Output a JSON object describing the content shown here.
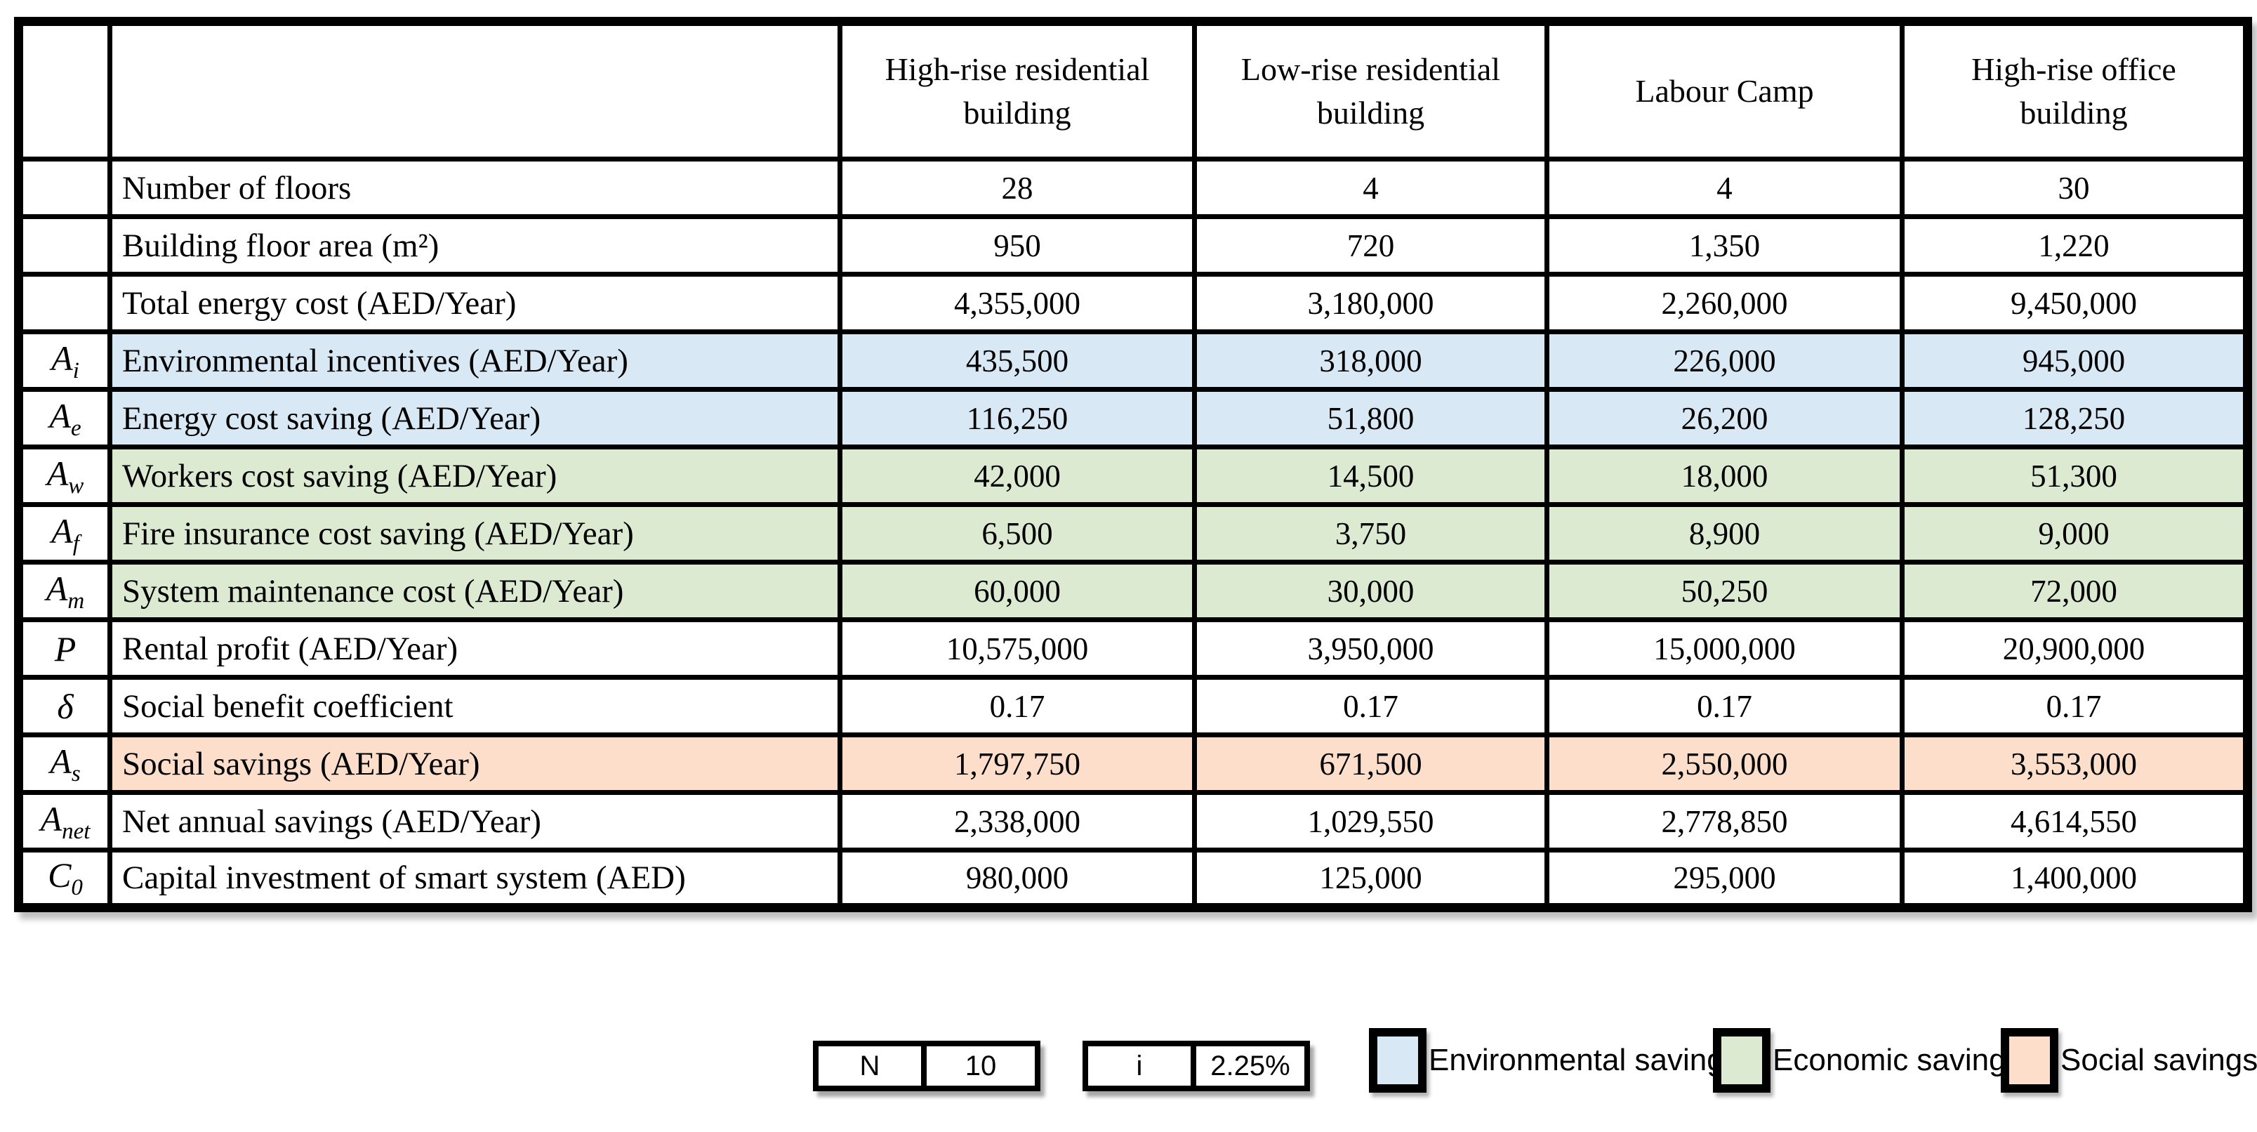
{
  "table": {
    "columns": [
      "High-rise residential building",
      "Low-rise residential building",
      "Labour Camp",
      "High-rise office building"
    ],
    "rows": [
      {
        "symbol": "",
        "sub": "",
        "band": "none",
        "label": "Number of floors",
        "values": [
          "28",
          "4",
          "4",
          "30"
        ]
      },
      {
        "symbol": "",
        "sub": "",
        "band": "none",
        "label": "Building floor area (m²)",
        "values": [
          "950",
          "720",
          "1,350",
          "1,220"
        ]
      },
      {
        "symbol": "",
        "sub": "",
        "band": "none",
        "label": "Total energy cost (AED/Year)",
        "values": [
          "4,355,000",
          "3,180,000",
          "2,260,000",
          "9,450,000"
        ]
      },
      {
        "symbol": "A",
        "sub": "i",
        "band": "environmental",
        "label": "Environmental incentives (AED/Year)",
        "values": [
          "435,500",
          "318,000",
          "226,000",
          "945,000"
        ]
      },
      {
        "symbol": "A",
        "sub": "e",
        "band": "environmental",
        "label": "Energy cost saving (AED/Year)",
        "values": [
          "116,250",
          "51,800",
          "26,200",
          "128,250"
        ]
      },
      {
        "symbol": "A",
        "sub": "w",
        "band": "economic",
        "label": "Workers cost saving (AED/Year)",
        "values": [
          "42,000",
          "14,500",
          "18,000",
          "51,300"
        ]
      },
      {
        "symbol": "A",
        "sub": "f",
        "band": "economic",
        "label": "Fire insurance cost saving (AED/Year)",
        "values": [
          "6,500",
          "3,750",
          "8,900",
          "9,000"
        ]
      },
      {
        "symbol": "A",
        "sub": "m",
        "band": "economic",
        "label": "System maintenance cost (AED/Year)",
        "values": [
          "60,000",
          "30,000",
          "50,250",
          "72,000"
        ]
      },
      {
        "symbol": "P",
        "sub": "",
        "band": "none",
        "label": "Rental profit (AED/Year)",
        "values": [
          "10,575,000",
          "3,950,000",
          "15,000,000",
          "20,900,000"
        ]
      },
      {
        "symbol": "δ",
        "sub": "",
        "band": "none",
        "label": "Social benefit coefficient",
        "values": [
          "0.17",
          "0.17",
          "0.17",
          "0.17"
        ]
      },
      {
        "symbol": "A",
        "sub": "s",
        "band": "social",
        "label": "Social savings (AED/Year)",
        "values": [
          "1,797,750",
          "671,500",
          "2,550,000",
          "3,553,000"
        ]
      },
      {
        "symbol": "A",
        "sub": "net",
        "band": "none",
        "label": "Net annual savings (AED/Year)",
        "values": [
          "2,338,000",
          "1,029,550",
          "2,778,850",
          "4,614,550"
        ]
      },
      {
        "symbol": "C",
        "sub": "0",
        "band": "none",
        "label": "Capital investment of smart system (AED)",
        "values": [
          "980,000",
          "125,000",
          "295,000",
          "1,400,000"
        ]
      }
    ]
  },
  "params": [
    {
      "label": "N",
      "value": "10"
    },
    {
      "label": "i",
      "value": "2.25%"
    }
  ],
  "legend": [
    {
      "label": "Environmental savings",
      "color": "#d9e8f5"
    },
    {
      "label": "Economic savings",
      "color": "#dcead2"
    },
    {
      "label": "Social savings",
      "color": "#fcdecb"
    }
  ],
  "colors": {
    "band_environmental": "#d9e8f5",
    "band_economic": "#dcead2",
    "band_social": "#fcdecb",
    "border": "#000000",
    "background": "#ffffff"
  }
}
